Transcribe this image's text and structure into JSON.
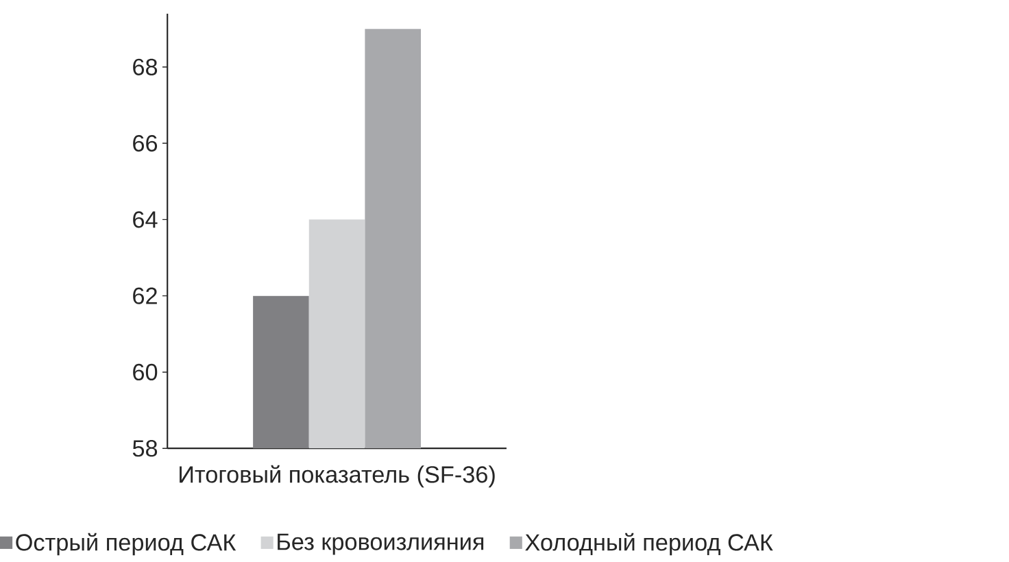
{
  "chart_data": {
    "type": "bar",
    "categories": [
      "Итоговый показатель (SF-36)"
    ],
    "series": [
      {
        "name": "Острый период САК",
        "color": "#808083",
        "values": [
          62
        ]
      },
      {
        "name": "Без кровоизлияния",
        "color": "#d2d3d5",
        "values": [
          64
        ]
      },
      {
        "name": "Холодный период САК",
        "color": "#a8a9ac",
        "values": [
          69
        ]
      }
    ],
    "ylim": [
      58,
      69.4
    ],
    "yticks": [
      58,
      60,
      62,
      64,
      66,
      68
    ],
    "grid": false,
    "legend": "bottom"
  }
}
